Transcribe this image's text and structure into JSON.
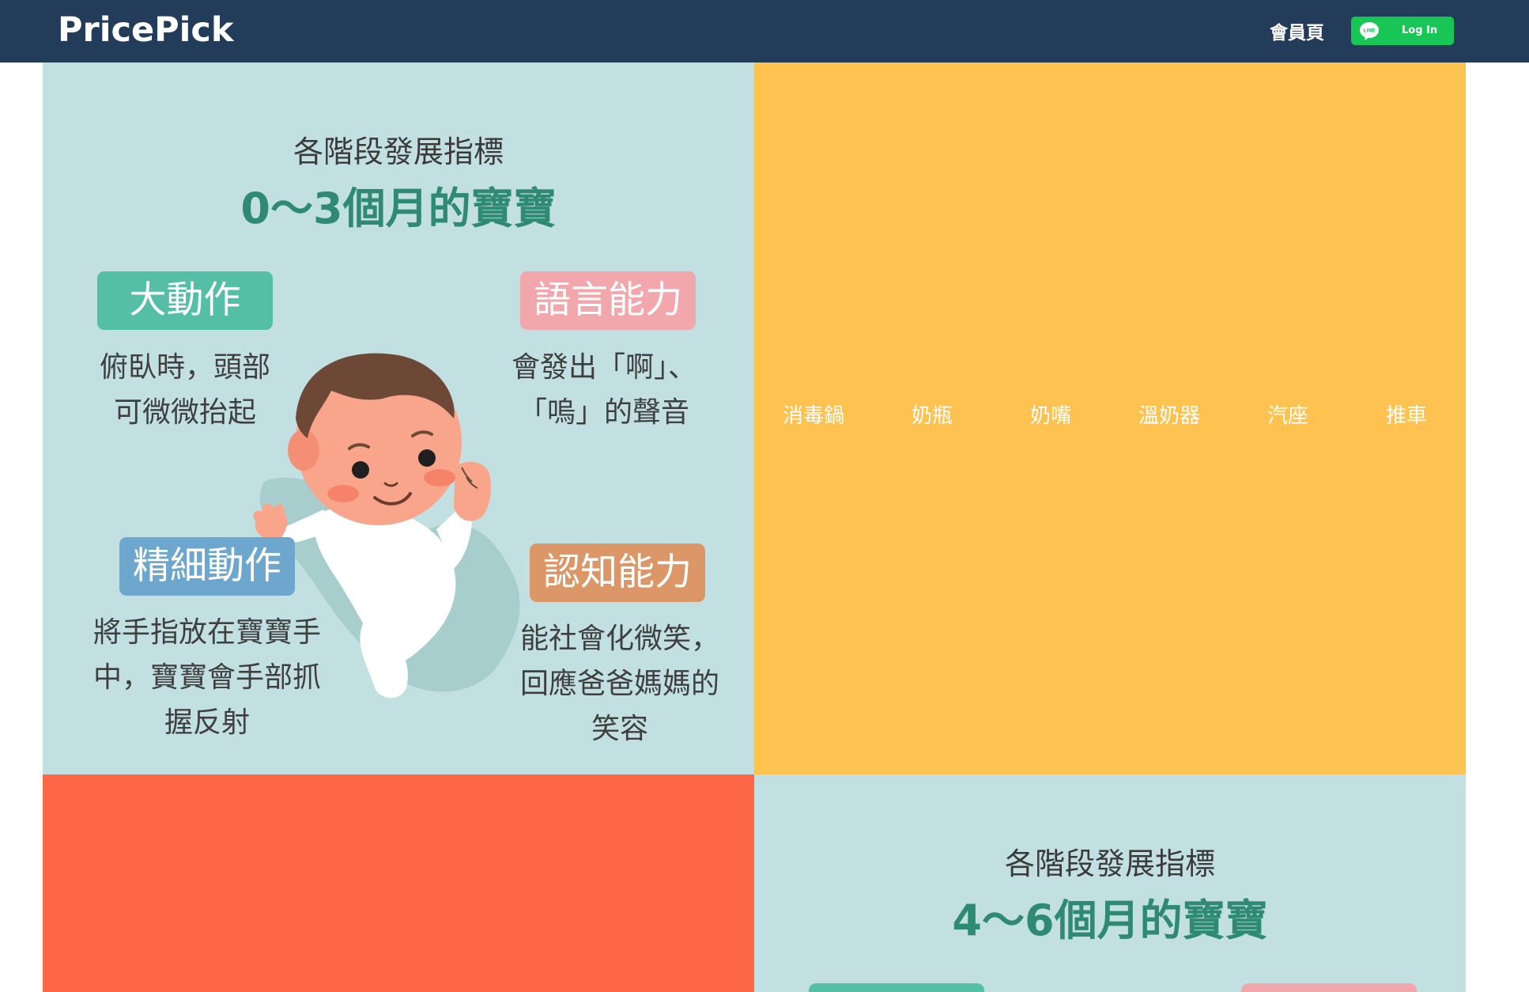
{
  "header": {
    "logo": "PricePick",
    "member_link": "會員頁",
    "login_label": "Log In",
    "line_icon_text": "LINE"
  },
  "stage1": {
    "subtitle": "各階段發展指標",
    "title": "0～3個月的寶寶",
    "gross_motor": {
      "tag": "大動作",
      "desc": "俯臥時，頭部\n可微微抬起"
    },
    "language": {
      "tag": "語言能力",
      "desc": "會發出「啊」、\n「嗚」的聲音"
    },
    "fine_motor": {
      "tag": "精細動作",
      "desc": "將手指放在寶寶手\n中，寶寶會手部抓\n握反射"
    },
    "cognitive": {
      "tag": "認知能力",
      "desc": "能社會化微笑，\n回應爸爸媽媽的\n笑容"
    }
  },
  "categories": [
    "消毒鍋",
    "奶瓶",
    "奶嘴",
    "溫奶器",
    "汽座",
    "推車"
  ],
  "stage2": {
    "subtitle": "各階段發展指標",
    "title": "4～6個月的寶寶"
  },
  "colors": {
    "header_bg": "#223c5a",
    "panel_blue": "#c2e0e1",
    "panel_yellow": "#fdc24f",
    "panel_red": "#ff6847",
    "title_green": "#2e8a73",
    "line_green": "#18c655"
  }
}
